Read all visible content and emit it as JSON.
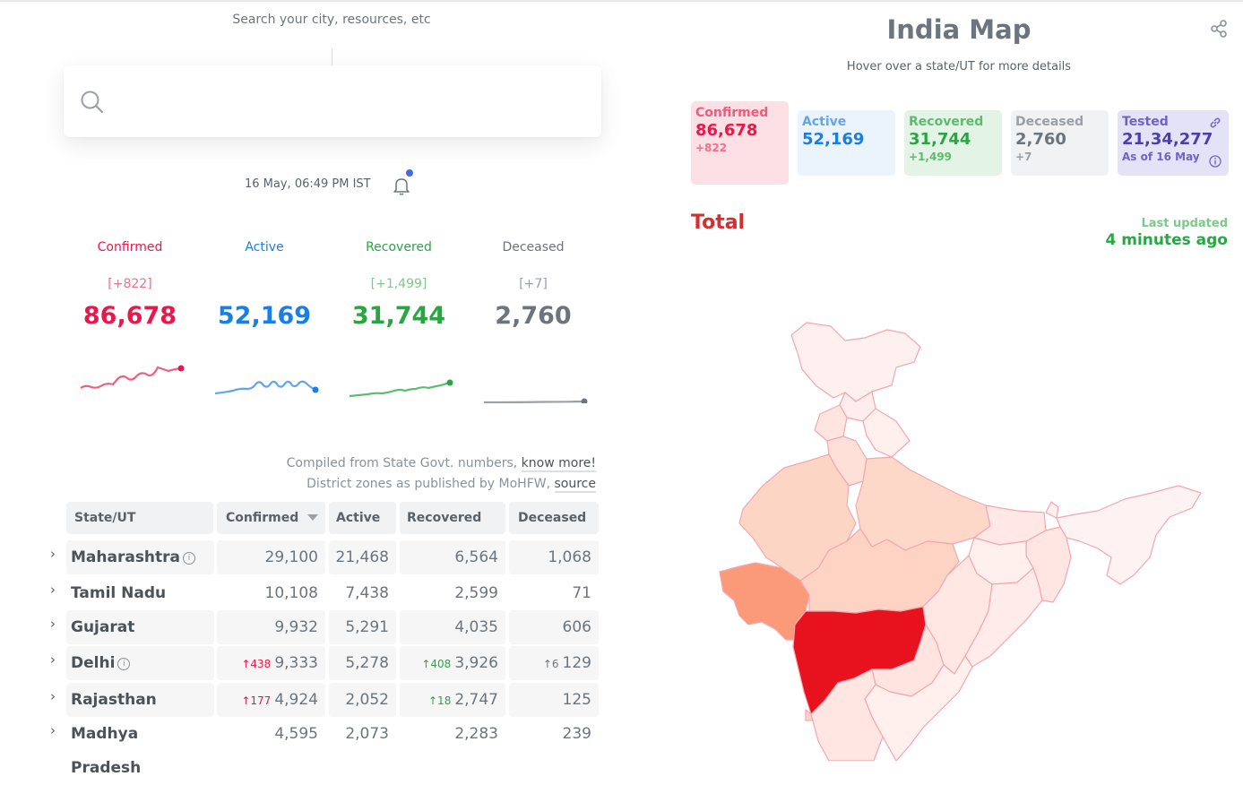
{
  "search": {
    "hint": "Search your city, resources, etc",
    "placeholder": "",
    "value": ""
  },
  "update": {
    "timestamp": "16 May, 06:49 PM IST"
  },
  "level": {
    "confirmed": {
      "label": "Confirmed",
      "delta": "[+822]",
      "total": "86,678",
      "color": "#e8194a"
    },
    "active": {
      "label": "Active",
      "delta": "",
      "total": "52,169",
      "color": "#1a7ee3"
    },
    "recovered": {
      "label": "Recovered",
      "delta": "[+1,499]",
      "total": "31,744",
      "color": "#2ba543"
    },
    "deceased": {
      "label": "Deceased",
      "delta": "[+7]",
      "total": "2,760",
      "color": "#6c757d"
    }
  },
  "compiled": {
    "line1": "Compiled from State Govt. numbers,",
    "link1": "know more!",
    "line2": "District zones as published by MoHFW,",
    "link2": "source"
  },
  "table": {
    "headers": {
      "state": "State/UT",
      "confirmed": "Confirmed",
      "active": "Active",
      "recovered": "Recovered",
      "deceased": "Deceased"
    },
    "sort_icon": "caret-down-icon",
    "rows": [
      {
        "state": "Maharashtra",
        "info": "i",
        "confirmed_delta": "",
        "confirmed": "29,100",
        "active": "21,468",
        "recovered_delta": "",
        "recovered": "6,564",
        "deceased_delta": "",
        "deceased": "1,068"
      },
      {
        "state": "Tamil Nadu",
        "info": "",
        "confirmed_delta": "",
        "confirmed": "10,108",
        "active": "7,438",
        "recovered_delta": "",
        "recovered": "2,599",
        "deceased_delta": "",
        "deceased": "71"
      },
      {
        "state": "Gujarat",
        "info": "",
        "confirmed_delta": "",
        "confirmed": "9,932",
        "active": "5,291",
        "recovered_delta": "",
        "recovered": "4,035",
        "deceased_delta": "",
        "deceased": "606"
      },
      {
        "state": "Delhi",
        "info": "i",
        "confirmed_delta": "↑438",
        "confirmed": "9,333",
        "active": "5,278",
        "recovered_delta": "↑408",
        "recovered": "3,926",
        "deceased_delta": "↑6",
        "deceased": "129"
      },
      {
        "state": "Rajasthan",
        "info": "",
        "confirmed_delta": "↑177",
        "confirmed": "4,924",
        "active": "2,052",
        "recovered_delta": "↑18",
        "recovered": "2,747",
        "deceased_delta": "",
        "deceased": "125"
      },
      {
        "state": "Madhya Pradesh",
        "info": "",
        "confirmed_delta": "",
        "confirmed": "4,595",
        "active": "2,073",
        "recovered_delta": "",
        "recovered": "2,283",
        "deceased_delta": "",
        "deceased": "239"
      }
    ]
  },
  "map": {
    "title": "India Map",
    "subtitle": "Hover over a state/UT for more details",
    "stats": {
      "confirmed": {
        "label": "Confirmed",
        "value": "86,678",
        "delta": "+822"
      },
      "active": {
        "label": "Active",
        "value": "52,169",
        "delta": ""
      },
      "recovered": {
        "label": "Recovered",
        "value": "31,744",
        "delta": "+1,499"
      },
      "deceased": {
        "label": "Deceased",
        "value": "2,760",
        "delta": "+7"
      },
      "tested": {
        "label": "Tested",
        "value": "21,34,277",
        "delta": "As of 16 May"
      }
    },
    "region": "Total",
    "last_updated_label": "Last updated",
    "last_updated_value": "4 minutes ago"
  },
  "icons": [
    "search-icon",
    "bell-icon",
    "share-icon",
    "link-icon",
    "info-icon",
    "chevron-right-icon"
  ]
}
